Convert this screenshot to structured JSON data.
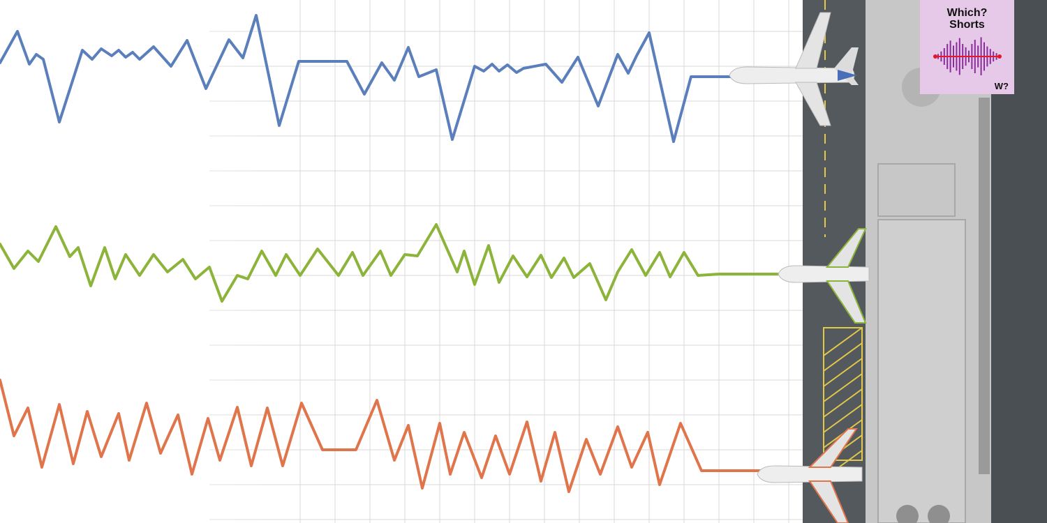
{
  "badge": {
    "title_line1": "Which?",
    "title_line2": "Shorts",
    "logo": "W?"
  },
  "colors": {
    "blue": "#5b7fba",
    "green": "#8db43a",
    "orange": "#e0744a",
    "runway": "#54595d",
    "terminal": "#c9c9c9",
    "badge_bg": "#e6c8e8",
    "badge_wave": "#8a2c9a",
    "badge_line": "#e3182d"
  }
}
